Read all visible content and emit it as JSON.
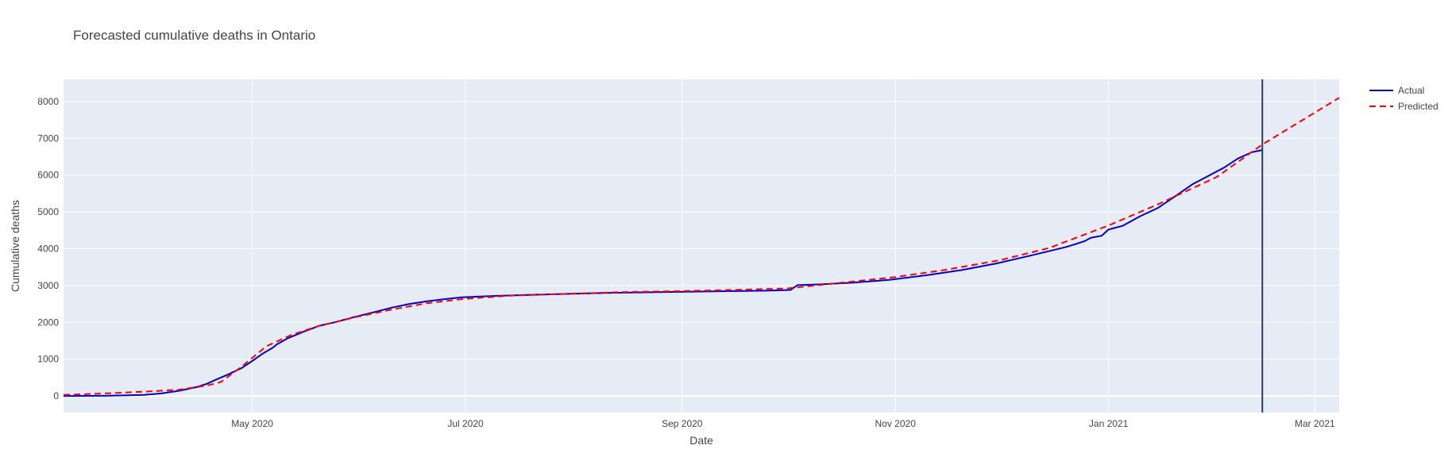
{
  "chart_data": {
    "type": "line",
    "title": "Forecasted cumulative deaths in Ontario",
    "xlabel": "Date",
    "ylabel": "Cumulative deaths",
    "xlim": [
      "2020-03-08",
      "2021-03-08"
    ],
    "ylim": [
      -450,
      8600
    ],
    "x_ticks": [
      {
        "date": "2020-05-01",
        "label": "May 2020"
      },
      {
        "date": "2020-07-01",
        "label": "Jul 2020"
      },
      {
        "date": "2020-09-01",
        "label": "Sep 2020"
      },
      {
        "date": "2020-11-01",
        "label": "Nov 2020"
      },
      {
        "date": "2021-01-01",
        "label": "Jan 2021"
      },
      {
        "date": "2021-03-01",
        "label": "Mar 2021"
      }
    ],
    "y_ticks": [
      0,
      1000,
      2000,
      3000,
      4000,
      5000,
      6000,
      7000,
      8000
    ],
    "grid": true,
    "legend": "top-right",
    "vline": {
      "x": "2021-02-14",
      "color": "#2a3f5f"
    },
    "series": [
      {
        "name": "Actual",
        "color": "#0000cd",
        "dash": "solid",
        "points": [
          [
            "2020-03-08",
            0
          ],
          [
            "2020-03-20",
            5
          ],
          [
            "2020-03-31",
            30
          ],
          [
            "2020-04-05",
            70
          ],
          [
            "2020-04-10",
            140
          ],
          [
            "2020-04-15",
            240
          ],
          [
            "2020-04-18",
            330
          ],
          [
            "2020-04-21",
            460
          ],
          [
            "2020-04-24",
            580
          ],
          [
            "2020-04-28",
            760
          ],
          [
            "2020-05-01",
            950
          ],
          [
            "2020-05-04",
            1150
          ],
          [
            "2020-05-07",
            1320
          ],
          [
            "2020-05-08",
            1400
          ],
          [
            "2020-05-11",
            1560
          ],
          [
            "2020-05-15",
            1720
          ],
          [
            "2020-05-20",
            1900
          ],
          [
            "2020-05-25",
            2010
          ],
          [
            "2020-05-30",
            2140
          ],
          [
            "2020-06-05",
            2280
          ],
          [
            "2020-06-10",
            2400
          ],
          [
            "2020-06-15",
            2500
          ],
          [
            "2020-06-20",
            2570
          ],
          [
            "2020-06-25",
            2630
          ],
          [
            "2020-06-30",
            2680
          ],
          [
            "2020-07-10",
            2720
          ],
          [
            "2020-07-25",
            2760
          ],
          [
            "2020-08-10",
            2800
          ],
          [
            "2020-08-25",
            2820
          ],
          [
            "2020-09-10",
            2840
          ],
          [
            "2020-09-25",
            2860
          ],
          [
            "2020-10-02",
            2880
          ],
          [
            "2020-10-04",
            3010
          ],
          [
            "2020-10-10",
            3030
          ],
          [
            "2020-10-20",
            3080
          ],
          [
            "2020-10-30",
            3150
          ],
          [
            "2020-11-10",
            3280
          ],
          [
            "2020-11-20",
            3420
          ],
          [
            "2020-11-30",
            3600
          ],
          [
            "2020-12-10",
            3820
          ],
          [
            "2020-12-20",
            4050
          ],
          [
            "2020-12-25",
            4200
          ],
          [
            "2020-12-27",
            4300
          ],
          [
            "2020-12-30",
            4350
          ],
          [
            "2021-01-01",
            4520
          ],
          [
            "2021-01-05",
            4620
          ],
          [
            "2021-01-10",
            4880
          ],
          [
            "2021-01-15",
            5100
          ],
          [
            "2021-01-20",
            5420
          ],
          [
            "2021-01-25",
            5750
          ],
          [
            "2021-01-30",
            6000
          ],
          [
            "2021-02-03",
            6200
          ],
          [
            "2021-02-07",
            6450
          ],
          [
            "2021-02-11",
            6620
          ],
          [
            "2021-02-14",
            6680
          ]
        ]
      },
      {
        "name": "Predicted",
        "color": "#ff0000",
        "dash": "dashed",
        "points": [
          [
            "2020-03-08",
            30
          ],
          [
            "2020-03-20",
            70
          ],
          [
            "2020-04-01",
            120
          ],
          [
            "2020-04-10",
            170
          ],
          [
            "2020-04-18",
            280
          ],
          [
            "2020-04-22",
            380
          ],
          [
            "2020-04-28",
            800
          ],
          [
            "2020-05-05",
            1350
          ],
          [
            "2020-05-12",
            1650
          ],
          [
            "2020-05-20",
            1900
          ],
          [
            "2020-05-30",
            2130
          ],
          [
            "2020-06-10",
            2350
          ],
          [
            "2020-06-20",
            2520
          ],
          [
            "2020-07-01",
            2640
          ],
          [
            "2020-07-15",
            2730
          ],
          [
            "2020-08-01",
            2780
          ],
          [
            "2020-08-15",
            2820
          ],
          [
            "2020-09-01",
            2850
          ],
          [
            "2020-09-15",
            2880
          ],
          [
            "2020-10-01",
            2920
          ],
          [
            "2020-10-15",
            3060
          ],
          [
            "2020-11-01",
            3230
          ],
          [
            "2020-11-15",
            3420
          ],
          [
            "2020-12-01",
            3690
          ],
          [
            "2020-12-15",
            4020
          ],
          [
            "2021-01-01",
            4630
          ],
          [
            "2021-01-15",
            5200
          ],
          [
            "2021-02-01",
            5950
          ],
          [
            "2021-02-14",
            6830
          ],
          [
            "2021-03-08",
            8100
          ]
        ]
      }
    ]
  }
}
